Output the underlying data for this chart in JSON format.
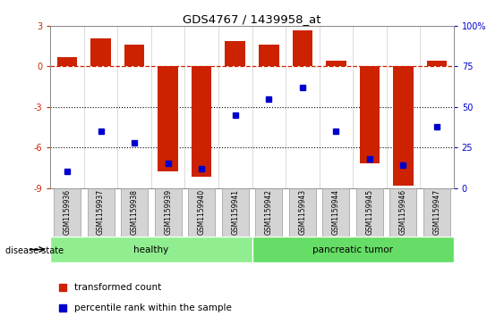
{
  "title": "GDS4767 / 1439958_at",
  "samples": [
    "GSM1159936",
    "GSM1159937",
    "GSM1159938",
    "GSM1159939",
    "GSM1159940",
    "GSM1159941",
    "GSM1159942",
    "GSM1159943",
    "GSM1159944",
    "GSM1159945",
    "GSM1159946",
    "GSM1159947"
  ],
  "bar_values": [
    0.7,
    2.1,
    1.6,
    -7.8,
    -8.2,
    1.9,
    1.6,
    2.7,
    0.4,
    -7.2,
    -8.8,
    0.4
  ],
  "dot_values_pct": [
    10,
    35,
    28,
    15,
    12,
    45,
    55,
    62,
    35,
    18,
    14,
    38
  ],
  "ylim_left": [
    -9,
    3
  ],
  "ylim_right": [
    0,
    100
  ],
  "bar_color": "#cc2200",
  "dot_color": "#0000cc",
  "healthy_color": "#90ee90",
  "tumor_color": "#66dd66",
  "legend_items": [
    "transformed count",
    "percentile rank within the sample"
  ],
  "disease_label": "disease state",
  "healthy_label": "healthy",
  "tumor_label": "pancreatic tumor",
  "right_yticks": [
    0,
    25,
    50,
    75,
    100
  ],
  "right_yticklabels": [
    "0",
    "25",
    "50",
    "75",
    "100%"
  ],
  "left_yticks": [
    -9,
    -6,
    -3,
    0,
    3
  ],
  "left_yticklabels": [
    "-9",
    "-6",
    "-3",
    "0",
    "3"
  ]
}
